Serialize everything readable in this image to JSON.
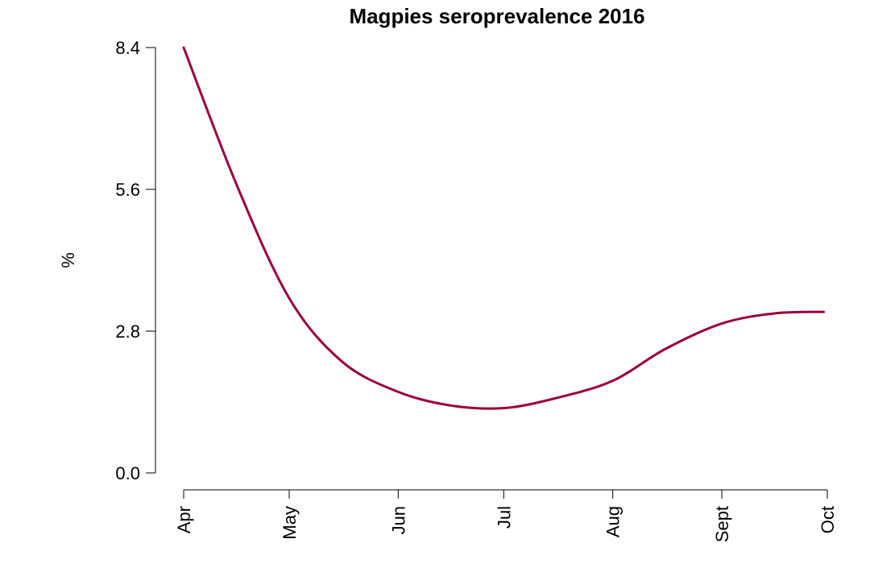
{
  "chart_data": {
    "type": "line",
    "title": "Magpies seroprevalence 2016",
    "xlabel": "",
    "ylabel": "%",
    "x_ticks": [
      "Apr",
      "May",
      "Jun",
      "Jul",
      "Aug",
      "Sept",
      "Oct"
    ],
    "y_ticks": [
      "0.0",
      "2.8",
      "5.6",
      "8.4"
    ],
    "xlim": [
      "Apr",
      "Oct"
    ],
    "ylim": [
      0,
      8.4
    ],
    "grid": false,
    "line_color": "#99003f",
    "series": [
      {
        "x": [
          "2016-04-01",
          "2016-04-16",
          "2016-05-01",
          "2016-05-16",
          "2016-06-01",
          "2016-06-16",
          "2016-07-01",
          "2016-07-16",
          "2016-08-01",
          "2016-08-16",
          "2016-09-01",
          "2016-09-16",
          "2016-09-30"
        ],
        "y": [
          8.4,
          5.7,
          3.45,
          2.2,
          1.6,
          1.33,
          1.28,
          1.48,
          1.82,
          2.45,
          2.95,
          3.15,
          3.18
        ]
      }
    ]
  }
}
